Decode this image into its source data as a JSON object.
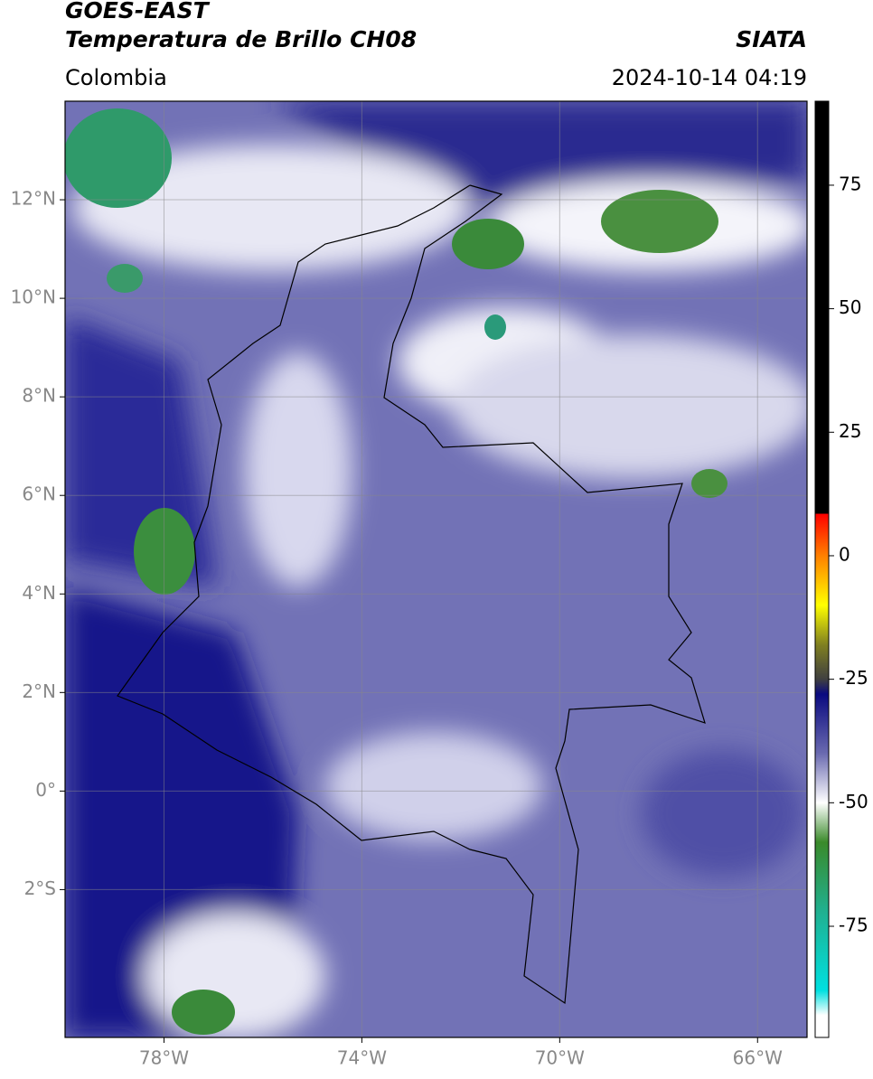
{
  "header": {
    "title": "GOES-EAST",
    "subtitle": "Temperatura de Brillo CH08",
    "source": "SIATA",
    "region": "Colombia",
    "datetime": "2024-10-14 04:19"
  },
  "map": {
    "xlim": [
      -80,
      -65
    ],
    "ylim": [
      -5,
      14
    ],
    "xticks": [
      {
        "value": -78,
        "label": "78°W"
      },
      {
        "value": -74,
        "label": "74°W"
      },
      {
        "value": -70,
        "label": "70°W"
      },
      {
        "value": -66,
        "label": "66°W"
      }
    ],
    "yticks": [
      {
        "value": 12,
        "label": "12°N"
      },
      {
        "value": 10,
        "label": "10°N"
      },
      {
        "value": 8,
        "label": "8°N"
      },
      {
        "value": 6,
        "label": "6°N"
      },
      {
        "value": 4,
        "label": "4°N"
      },
      {
        "value": 2,
        "label": "2°N"
      },
      {
        "value": 0,
        "label": "0°"
      },
      {
        "value": -2,
        "label": "2°S"
      }
    ],
    "grid": true
  },
  "colorbar": {
    "lim": [
      -97.5,
      92
    ],
    "ticks": [
      75,
      50,
      25,
      0,
      -25,
      -50,
      -75
    ],
    "stops": [
      [
        92,
        "#000000"
      ],
      [
        8.5,
        "#000000"
      ],
      [
        8.5,
        "#ff0000"
      ],
      [
        0,
        "#ff8000"
      ],
      [
        -10,
        "#ffff00"
      ],
      [
        -18,
        "#808020"
      ],
      [
        -25,
        "#404040"
      ],
      [
        -28,
        "#0a0a80"
      ],
      [
        -40,
        "#6a6ab0"
      ],
      [
        -50,
        "#ffffff"
      ],
      [
        -58,
        "#3a8a2a"
      ],
      [
        -72,
        "#20b090"
      ],
      [
        -88,
        "#00e0e0"
      ],
      [
        -93,
        "#ffffff"
      ],
      [
        -97.5,
        "#ffffff"
      ]
    ]
  }
}
